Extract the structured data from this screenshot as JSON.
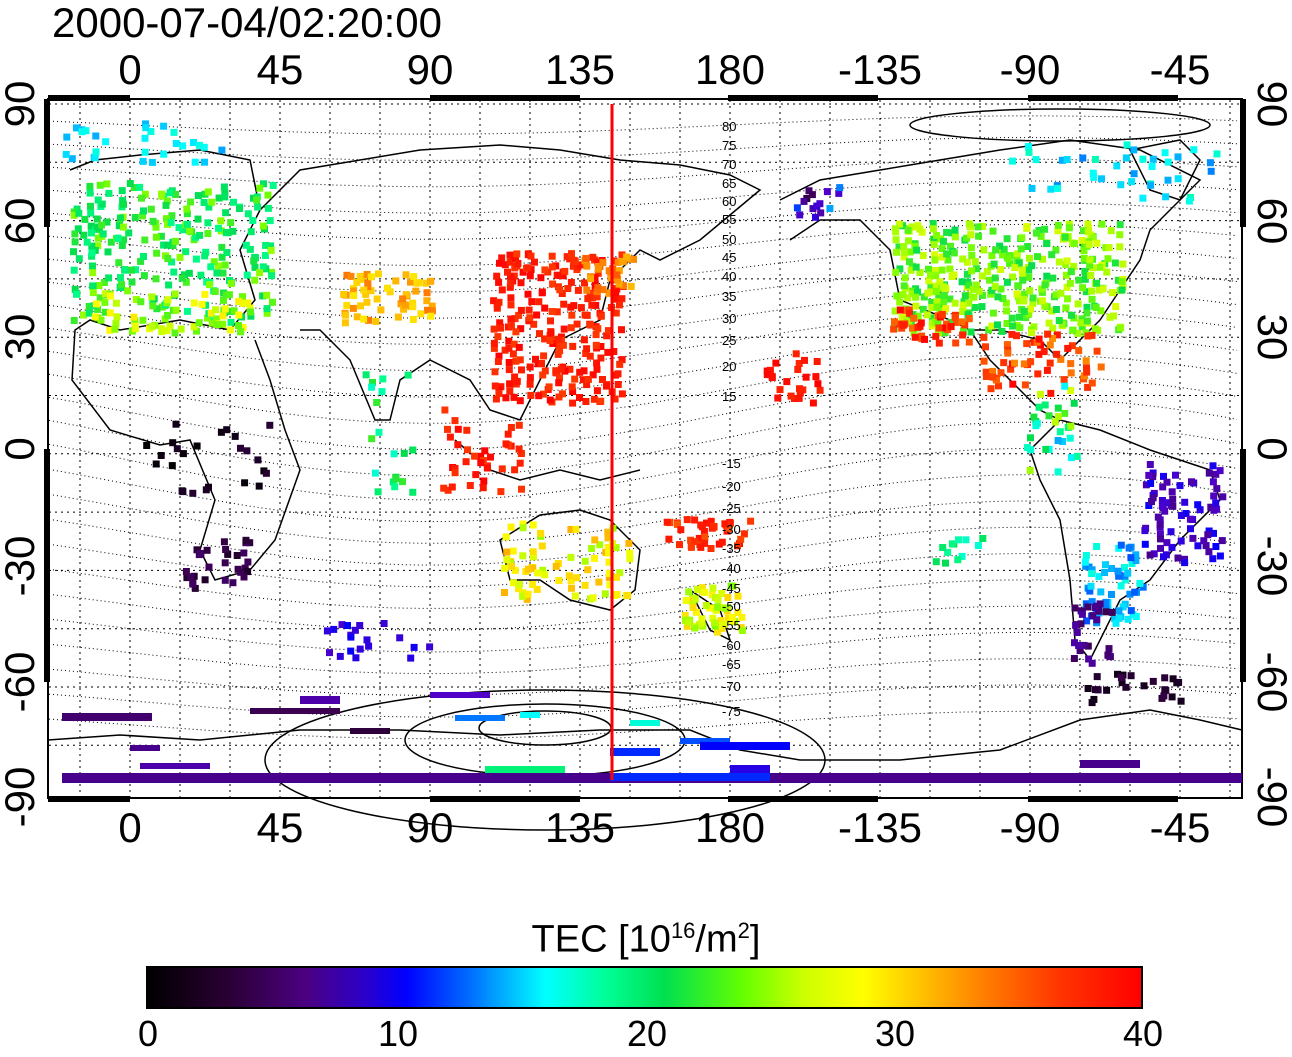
{
  "timestamp": "2000-07-04/02:20:00",
  "map": {
    "x_ticks_top": [
      "0",
      "45",
      "90",
      "135",
      "180",
      "-135",
      "-90",
      "-45"
    ],
    "x_ticks_bottom": [
      "0",
      "45",
      "90",
      "135",
      "180",
      "-135",
      "-90",
      "-45"
    ],
    "y_ticks_left": [
      "90",
      "60",
      "30",
      "0",
      "-30",
      "-60",
      "-90"
    ],
    "y_ticks_right": [
      "90",
      "60",
      "30",
      "0",
      "-30",
      "-60",
      "-90"
    ],
    "contour_labels_north": [
      "80",
      "75",
      "70",
      "65",
      "60",
      "55",
      "50",
      "45",
      "40",
      "35",
      "30",
      "25",
      "20",
      "15"
    ],
    "contour_labels_south": [
      "-15",
      "-20",
      "-25",
      "-30",
      "-35",
      "-40",
      "-45",
      "-50",
      "-55",
      "-60",
      "-65",
      "-70",
      "-75"
    ],
    "terminator_longitude": 145,
    "terminator_color": "#ff0000"
  },
  "colorbar": {
    "title": "TEC  [10",
    "title_sup1": "16",
    "title_mid": "/m",
    "title_sup2": "2",
    "title_end": "]",
    "ticks": [
      "0",
      "10",
      "20",
      "30",
      "40"
    ],
    "min": 0,
    "max": 40
  },
  "colors": {
    "low": "#000000",
    "mid_low": "#0000ff",
    "mid": "#00ff66",
    "mid_high": "#ffff00",
    "high": "#ff0000"
  }
}
